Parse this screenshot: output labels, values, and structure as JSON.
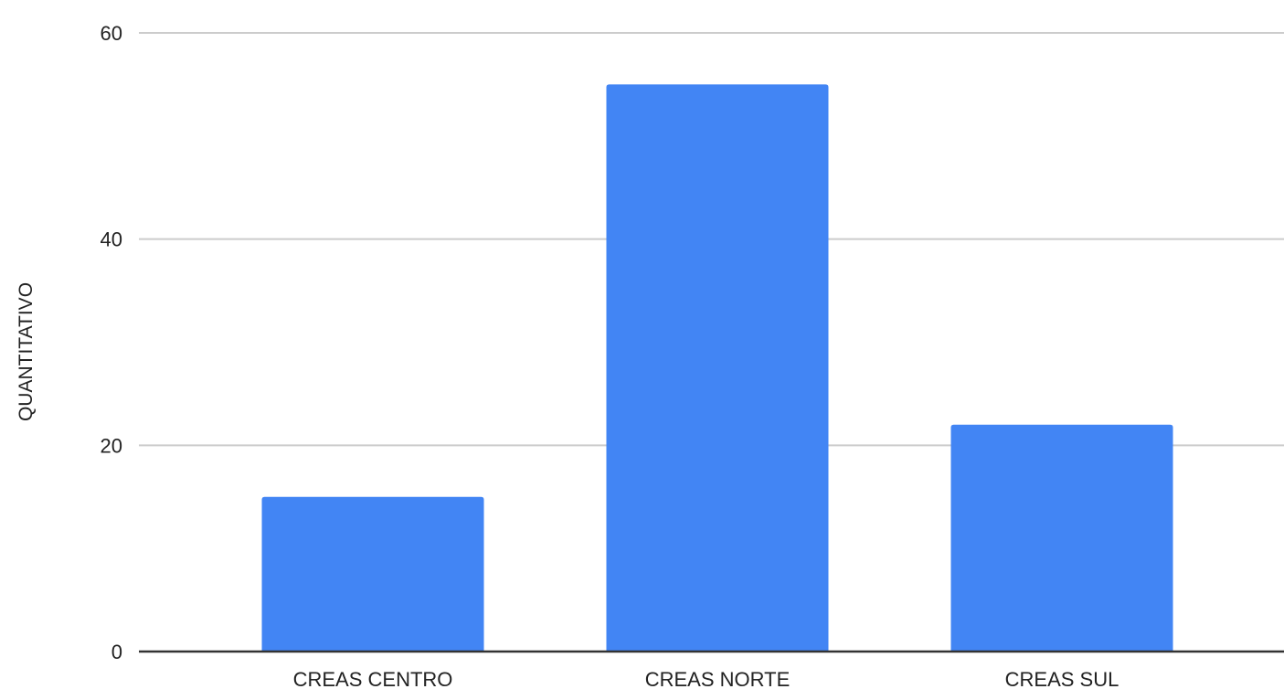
{
  "chart_data": {
    "type": "bar",
    "title": "",
    "xlabel": "",
    "ylabel": "QUANTITATIVO",
    "categories": [
      "CREAS CENTRO",
      "CREAS NORTE",
      "CREAS SUL"
    ],
    "values": [
      15,
      55,
      22
    ],
    "ylim": [
      0,
      60
    ],
    "yticks": [
      "0",
      "20",
      "40",
      "60"
    ],
    "grid": true,
    "legend": "none",
    "colors": {
      "bar": "#4285f4",
      "grid": "#cccccc",
      "baseline": "#333333",
      "text": "#222222"
    }
  }
}
